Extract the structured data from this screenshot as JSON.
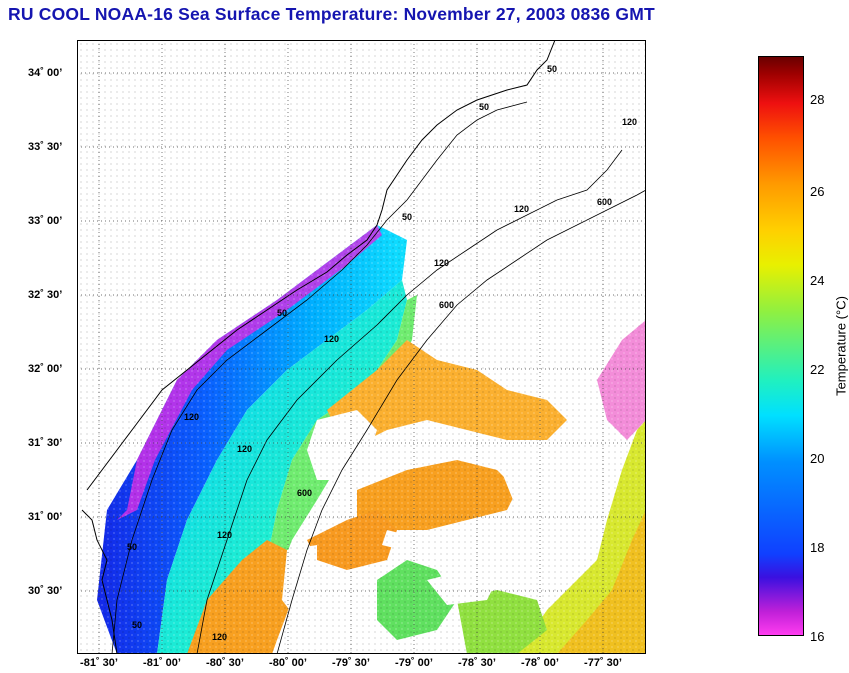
{
  "header": {
    "title": "RU COOL  NOAA-16  Sea Surface Temperature:  November 27, 2003 0836 GMT"
  },
  "map": {
    "lat_labels": [
      "34˚ 00’",
      "33˚ 30’",
      "33˚ 00’",
      "32˚ 30’",
      "32˚ 00’",
      "31˚ 30’",
      "31˚ 00’",
      "30˚ 30’"
    ],
    "lon_labels": [
      "-81˚ 30’",
      "-81˚ 00’",
      "-80˚ 30’",
      "-80˚ 00’",
      "-79˚ 30’",
      "-79˚ 00’",
      "-78˚ 30’",
      "-78˚ 00’",
      "-77˚ 30’"
    ],
    "contour_labels": [
      "50",
      "50",
      "120",
      "600",
      "120",
      "50",
      "120",
      "600",
      "50",
      "120",
      "600",
      "120",
      "50",
      "50",
      "120",
      "120",
      "120"
    ]
  },
  "colorbar": {
    "title": "Temperature (°C)",
    "ticks": [
      "28",
      "26",
      "24",
      "22",
      "20",
      "18",
      "16"
    ]
  }
}
